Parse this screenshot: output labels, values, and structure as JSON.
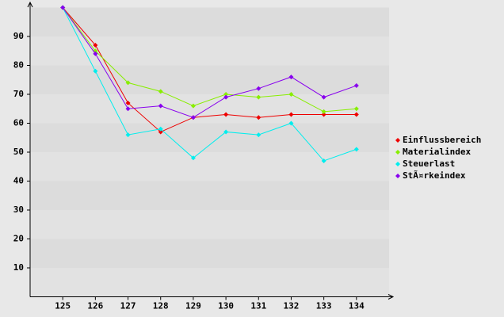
{
  "chart_data": {
    "type": "line",
    "x": [
      125,
      126,
      127,
      128,
      129,
      130,
      131,
      132,
      133,
      134
    ],
    "xlim": [
      124,
      135
    ],
    "xticks": [
      125,
      126,
      127,
      128,
      129,
      130,
      131,
      132,
      133,
      134
    ],
    "ylim": [
      0,
      100
    ],
    "yticks": [
      10,
      20,
      30,
      40,
      50,
      60,
      70,
      80,
      90
    ],
    "grid": true,
    "legend": "right",
    "series": [
      {
        "name": "Einflussbereich",
        "color": "#ee0000",
        "values": [
          100,
          87,
          67,
          57,
          62,
          63,
          62,
          63,
          63,
          63
        ]
      },
      {
        "name": "Materialindex",
        "color": "#88ee00",
        "values": [
          100,
          85,
          74,
          71,
          66,
          70,
          69,
          70,
          64,
          65
        ]
      },
      {
        "name": "Steuerlast",
        "color": "#00eeee",
        "values": [
          100,
          78,
          56,
          58,
          48,
          57,
          56,
          60,
          47,
          51
        ]
      },
      {
        "name": "StÃ¤rkeindex",
        "color": "#8800ee",
        "values": [
          100,
          84,
          65,
          66,
          62,
          69,
          72,
          76,
          69,
          73
        ]
      }
    ]
  }
}
